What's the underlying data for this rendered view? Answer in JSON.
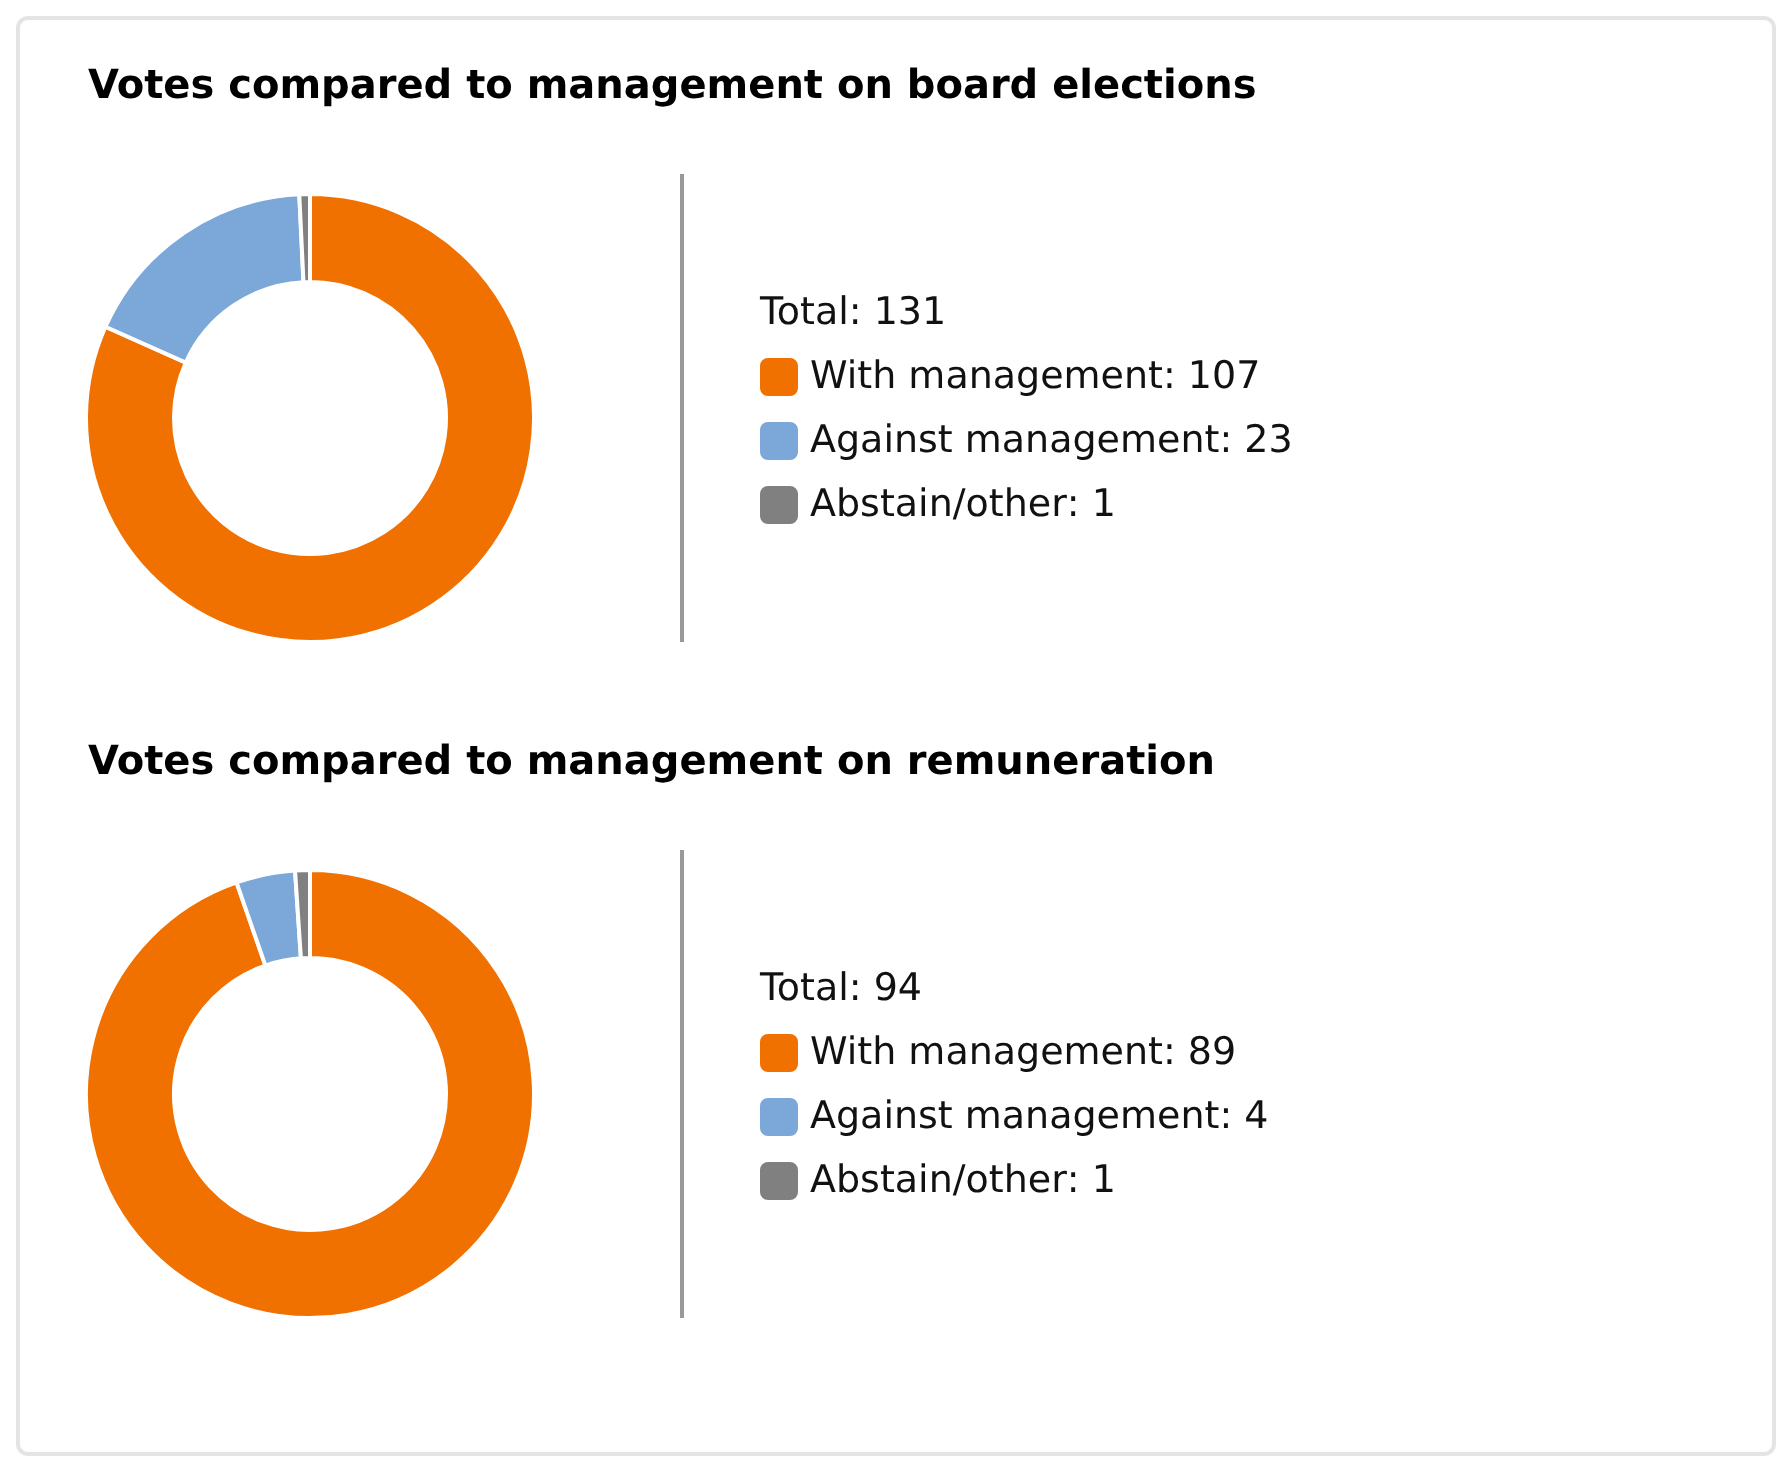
{
  "chart_data": [
    {
      "type": "donut",
      "title": "Votes compared to management on board elections",
      "categories": [
        "With management",
        "Against management",
        "Abstain/other"
      ],
      "values": [
        107,
        23,
        1
      ],
      "value_labels": [
        ": 107",
        ": 23",
        ": 1"
      ],
      "colors": [
        "#f07000",
        "#7ba7d9",
        "#808080"
      ],
      "legend": "right",
      "annotations": [
        "Total: 131"
      ]
    },
    {
      "type": "donut",
      "title": "Votes compared to management on remuneration",
      "categories": [
        "With management",
        "Against management",
        "Abstain/other"
      ],
      "values": [
        89,
        4,
        1
      ],
      "value_labels": [
        ": 89",
        ": 4",
        ": 1"
      ],
      "colors": [
        "#f07000",
        "#7ba7d9",
        "#808080"
      ],
      "legend": "right",
      "annotations": [
        "Total: 94"
      ]
    }
  ]
}
